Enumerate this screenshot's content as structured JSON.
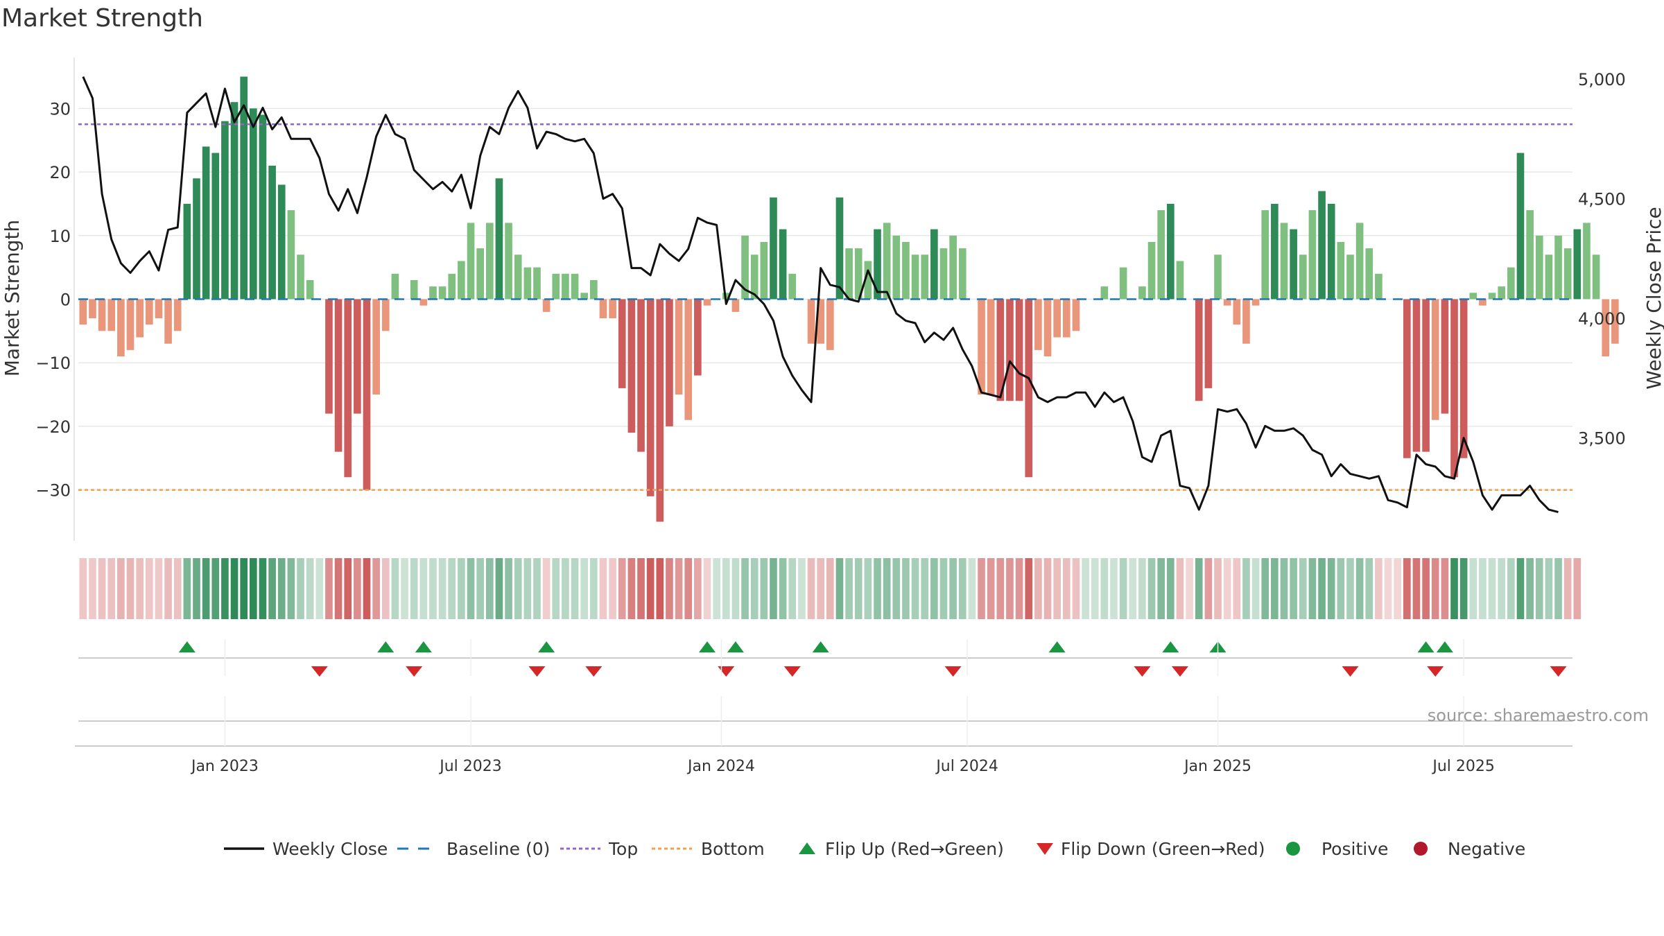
{
  "title": "Market Strength",
  "source": "source: sharemaestro.com",
  "colors": {
    "pos_strong": "#2e8b57",
    "pos_weak": "#7fbf7f",
    "neg_strong": "#cd5c5c",
    "neg_weak": "#e9967a",
    "line": "#111111",
    "top": "#9467bd",
    "bottom": "#f0a050",
    "baseline": "#1f77b4",
    "flip_up": "#1a9641",
    "flip_down": "#d62728",
    "positive": "#1a9641",
    "negative": "#b2182b"
  },
  "chart_data": {
    "type": "bar+line",
    "title": "Market Strength",
    "ylabel": "Market Strength",
    "y2label": "Weekly Close Price",
    "ylim": [
      -38,
      38
    ],
    "y2lim": [
      3070,
      5090
    ],
    "yticks": [
      30,
      20,
      10,
      0,
      -10,
      -20,
      -30
    ],
    "ytick_labels": [
      "30",
      "20",
      "10",
      "0",
      "−10",
      "−20",
      "−30"
    ],
    "y2ticks": [
      5000,
      4500,
      4000,
      3500
    ],
    "y2tick_labels": [
      "5,000",
      "4,500",
      "4,000",
      "3,500"
    ],
    "top_level": 27.5,
    "bottom_level": -30,
    "x_index_range": [
      0,
      157
    ],
    "xticks": [
      {
        "label": "Jan 2023",
        "index": 15
      },
      {
        "label": "Jul 2023",
        "index": 41
      },
      {
        "label": "Jan 2024",
        "index": 67.5
      },
      {
        "label": "Jul 2024",
        "index": 93.5
      },
      {
        "label": "Jan 2025",
        "index": 120
      },
      {
        "label": "Jul 2025",
        "index": 146
      }
    ],
    "strength": [
      -4,
      -3,
      -5,
      -5,
      -9,
      -8,
      -6,
      -4,
      -3,
      -7,
      -5,
      15,
      19,
      24,
      23,
      28,
      31,
      35,
      30,
      29,
      21,
      18,
      14,
      7,
      3,
      0,
      -18,
      -24,
      -28,
      -18,
      -30,
      -15,
      -5,
      4,
      0,
      3,
      -1,
      2,
      2,
      4,
      6,
      12,
      8,
      12,
      19,
      12,
      7,
      5,
      5,
      -2,
      4,
      4,
      4,
      1,
      3,
      -3,
      -3,
      -14,
      -21,
      -24,
      -31,
      -35,
      -20,
      -15,
      -19,
      -12,
      -1,
      0,
      1,
      -2,
      10,
      7,
      9,
      16,
      11,
      4,
      0,
      -7,
      -7,
      -8,
      16,
      8,
      8,
      6,
      11,
      12,
      10,
      9,
      7,
      7,
      11,
      8,
      10,
      8,
      0,
      -15,
      -15,
      -16,
      -16,
      -16,
      -28,
      -8,
      -9,
      -6,
      -6,
      -5,
      0,
      0,
      2,
      0,
      5,
      0,
      2,
      9,
      14,
      15,
      6,
      0,
      -16,
      -14,
      7,
      -1,
      -4,
      -7,
      -1,
      14,
      15,
      12,
      11,
      7,
      14,
      17,
      15,
      9,
      7,
      12,
      8,
      4,
      0,
      0,
      -25,
      -24,
      -24,
      -19,
      -18,
      -28,
      -25,
      1,
      -1,
      1,
      2,
      5,
      23,
      14,
      10,
      7,
      10,
      8,
      11,
      12,
      7,
      -9,
      -7
    ],
    "close": [
      5010,
      4920,
      4520,
      4330,
      4230,
      4190,
      4240,
      4280,
      4200,
      4370,
      4380,
      4860,
      4900,
      4940,
      4800,
      4960,
      4820,
      4890,
      4800,
      4880,
      4790,
      4840,
      4750,
      4750,
      4750,
      4670,
      4520,
      4450,
      4540,
      4440,
      4590,
      4760,
      4850,
      4770,
      4750,
      4620,
      4580,
      4540,
      4570,
      4530,
      4600,
      4460,
      4680,
      4800,
      4770,
      4880,
      4950,
      4880,
      4710,
      4780,
      4770,
      4750,
      4740,
      4750,
      4690,
      4500,
      4520,
      4460,
      4210,
      4210,
      4180,
      4310,
      4270,
      4240,
      4290,
      4420,
      4400,
      4390,
      4060,
      4160,
      4120,
      4100,
      4060,
      3990,
      3840,
      3760,
      3700,
      3650,
      4210,
      4140,
      4130,
      4080,
      4070,
      4200,
      4110,
      4110,
      4020,
      3990,
      3980,
      3900,
      3940,
      3910,
      3960,
      3870,
      3800,
      3690,
      3680,
      3670,
      3820,
      3770,
      3750,
      3670,
      3650,
      3670,
      3670,
      3690,
      3690,
      3630,
      3690,
      3650,
      3670,
      3570,
      3420,
      3400,
      3510,
      3530,
      3300,
      3290,
      3200,
      3300,
      3620,
      3610,
      3620,
      3560,
      3460,
      3550,
      3530,
      3530,
      3540,
      3510,
      3450,
      3430,
      3340,
      3390,
      3350,
      3340,
      3330,
      3340,
      3240,
      3230,
      3210,
      3430,
      3390,
      3380,
      3340,
      3330,
      3500,
      3400,
      3260,
      3200,
      3260,
      3260,
      3260,
      3300,
      3240,
      3200,
      3190
    ],
    "regime_strip": [
      "r",
      "r",
      "r",
      "r",
      "r",
      "r",
      "r",
      "r",
      "r",
      "r",
      "r",
      "g",
      "g",
      "g",
      "g",
      "g",
      "g",
      "g",
      "g",
      "g",
      "g",
      "g",
      "g",
      "g",
      "g",
      "g",
      "r",
      "r",
      "r",
      "r",
      "r",
      "r",
      "r",
      "g",
      "g",
      "g",
      "g",
      "g",
      "g",
      "g",
      "g",
      "g",
      "g",
      "g",
      "g",
      "g",
      "g",
      "g",
      "g",
      "r",
      "g",
      "g",
      "g",
      "g",
      "g",
      "r",
      "r",
      "r",
      "r",
      "r",
      "r",
      "r",
      "r",
      "r",
      "r",
      "r",
      "r",
      "g",
      "g",
      "g",
      "g",
      "g",
      "g",
      "g",
      "g",
      "g",
      "g",
      "r",
      "r",
      "r",
      "g",
      "g",
      "g",
      "g",
      "g",
      "g",
      "g",
      "g",
      "g",
      "g",
      "g",
      "g",
      "g",
      "g",
      "g",
      "r",
      "r",
      "r",
      "r",
      "r",
      "r",
      "r",
      "r",
      "r",
      "r",
      "r",
      "g",
      "g",
      "g",
      "g",
      "g",
      "g",
      "g",
      "g",
      "g",
      "g",
      "r",
      "r",
      "g",
      "r",
      "r",
      "r",
      "r",
      "g",
      "g",
      "g",
      "g",
      "g",
      "g",
      "g",
      "g",
      "g",
      "g",
      "g",
      "g",
      "g",
      "g",
      "r",
      "r",
      "r",
      "r",
      "r",
      "r",
      "r",
      "r",
      "g",
      "g",
      "g",
      "g",
      "g",
      "g",
      "g",
      "g",
      "g",
      "g",
      "g",
      "g",
      "r",
      "r"
    ],
    "flip_up_index": [
      11,
      32,
      36,
      49,
      66,
      69,
      78,
      103,
      115,
      120,
      142,
      144
    ],
    "flip_down_index": [
      25,
      35,
      48,
      54,
      68,
      75,
      92,
      112,
      116,
      134,
      143,
      156
    ],
    "legend": [
      {
        "label": "Weekly Close",
        "kind": "line"
      },
      {
        "label": "Baseline (0)",
        "kind": "dash"
      },
      {
        "label": "Top",
        "kind": "dot-purple"
      },
      {
        "label": "Bottom",
        "kind": "dot-orange"
      },
      {
        "label": "Flip Up (Red→Green)",
        "kind": "tri-up"
      },
      {
        "label": "Flip Down (Green→Red)",
        "kind": "tri-down"
      },
      {
        "label": "Positive",
        "kind": "dot-green"
      },
      {
        "label": "Negative",
        "kind": "dot-red"
      }
    ]
  }
}
